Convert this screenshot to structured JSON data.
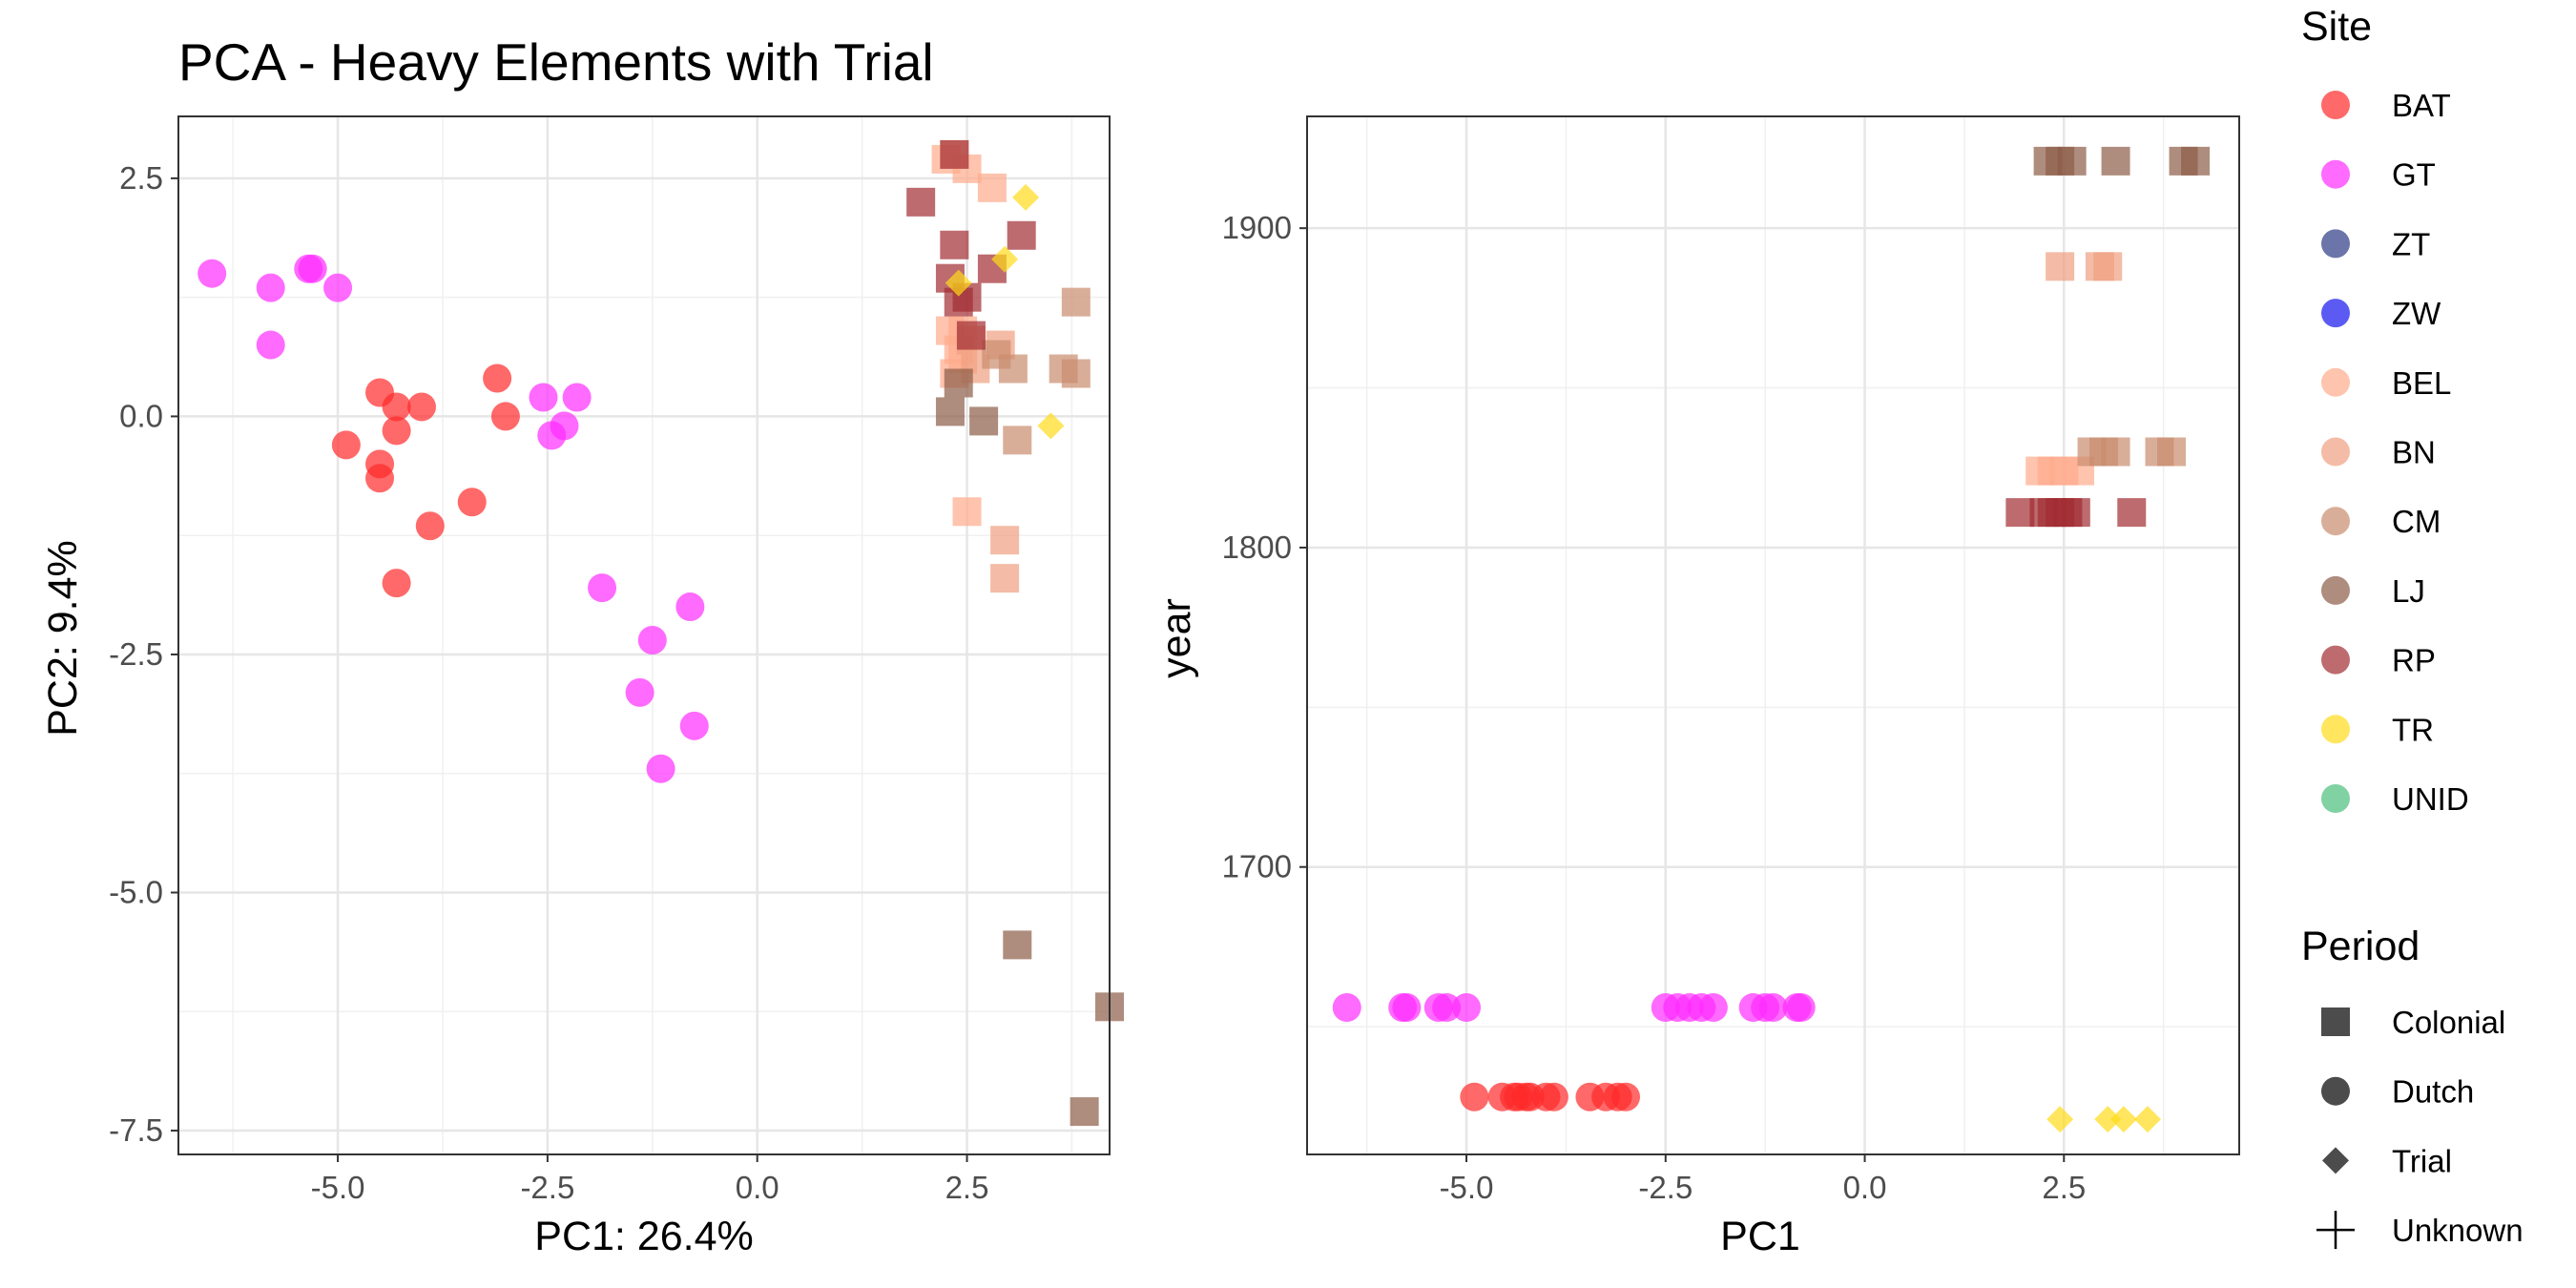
{
  "chart_data": [
    {
      "type": "scatter",
      "title": "PCA - Heavy Elements with Trial",
      "xlabel": "PC1: 26.4%",
      "ylabel": "PC2: 9.4%",
      "xlim": [
        -6.9,
        4.2
      ],
      "ylim": [
        -7.75,
        3.15
      ],
      "xticks": [
        "-5.0",
        "-2.5",
        "0.0",
        "2.5"
      ],
      "xtick_values": [
        -5.0,
        -2.5,
        0.0,
        2.5
      ],
      "yticks": [
        "2.5",
        "0.0",
        "-2.5",
        "-5.0",
        "-7.5"
      ],
      "ytick_values": [
        2.5,
        0.0,
        -2.5,
        -5.0,
        -7.5
      ],
      "grid": true,
      "series": [
        {
          "name": "BAT",
          "period": "Dutch",
          "x": [
            -4.5,
            -4.3,
            -4.0,
            -4.9,
            -4.5,
            -4.5,
            -4.3,
            -3.1,
            -3.0,
            -3.4,
            -3.9,
            -4.3
          ],
          "y": [
            0.25,
            0.1,
            0.1,
            -0.3,
            -0.5,
            -0.65,
            -0.15,
            0.4,
            0.0,
            -0.9,
            -1.15,
            -1.75
          ]
        },
        {
          "name": "GT",
          "period": "Dutch",
          "x": [
            -6.5,
            -5.8,
            -5.3,
            -5.35,
            -5.0,
            -5.8,
            -2.55,
            -2.15,
            -2.45,
            -2.3,
            -1.85,
            -0.8,
            -1.25,
            -1.4,
            -0.75,
            -1.15
          ],
          "y": [
            1.5,
            1.35,
            1.55,
            1.55,
            1.35,
            0.75,
            0.2,
            0.2,
            -0.2,
            -0.1,
            -1.8,
            -2.0,
            -2.35,
            -2.9,
            -3.25,
            -3.7
          ]
        },
        {
          "name": "BEL",
          "period": "Colonial",
          "x": [
            2.35,
            2.25,
            2.5,
            2.8,
            2.3,
            2.45,
            2.4,
            2.35,
            2.45,
            2.5
          ],
          "y": [
            2.75,
            2.7,
            2.6,
            2.4,
            0.9,
            0.9,
            0.7,
            0.45,
            0.6,
            -1.0
          ]
        },
        {
          "name": "BN",
          "period": "Colonial",
          "x": [
            2.95,
            2.95,
            2.55,
            2.6,
            2.9
          ],
          "y": [
            -1.3,
            -1.7,
            0.8,
            0.5,
            0.75
          ]
        },
        {
          "name": "CM",
          "period": "Colonial",
          "x": [
            3.8,
            3.65,
            3.8,
            3.05,
            3.1,
            2.85
          ],
          "y": [
            1.2,
            0.5,
            0.45,
            0.5,
            -0.25,
            0.65
          ]
        },
        {
          "name": "LJ",
          "period": "Colonial",
          "x": [
            2.4,
            2.3,
            2.7,
            3.1,
            4.2,
            3.9
          ],
          "y": [
            0.35,
            0.05,
            -0.05,
            -5.55,
            -6.2,
            -7.3
          ]
        },
        {
          "name": "RP",
          "period": "Colonial",
          "x": [
            2.35,
            1.95,
            3.15,
            2.35,
            2.8,
            2.3,
            2.5,
            2.55,
            2.4
          ],
          "y": [
            2.75,
            2.25,
            1.9,
            1.8,
            1.55,
            1.45,
            1.25,
            0.85,
            1.2
          ]
        },
        {
          "name": "TR",
          "period": "Trial",
          "x": [
            3.2,
            2.95,
            2.4,
            3.5
          ],
          "y": [
            2.3,
            1.65,
            1.4,
            -0.1
          ]
        }
      ]
    },
    {
      "type": "scatter",
      "title": "",
      "xlabel": "PC1",
      "ylabel": "year",
      "xlim": [
        -7.0,
        4.7
      ],
      "ylim": [
        1610,
        1935
      ],
      "xticks": [
        "-5.0",
        "-2.5",
        "0.0",
        "2.5"
      ],
      "xtick_values": [
        -5.0,
        -2.5,
        0.0,
        2.5
      ],
      "yticks": [
        "1900",
        "1800",
        "1700"
      ],
      "ytick_values": [
        1900,
        1800,
        1700
      ],
      "grid": true,
      "series": [
        {
          "name": "BAT",
          "period": "Dutch",
          "x": [
            -4.9,
            -4.55,
            -4.4,
            -4.35,
            -4.25,
            -4.2,
            -4.0,
            -3.9,
            -3.45,
            -3.25,
            -3.1,
            -3.0
          ],
          "y": [
            1628,
            1628,
            1628,
            1628,
            1628,
            1628,
            1628,
            1628,
            1628,
            1628,
            1628,
            1628
          ]
        },
        {
          "name": "GT",
          "period": "Dutch",
          "x": [
            -6.5,
            -5.8,
            -5.75,
            -5.35,
            -5.25,
            -5.0,
            -2.5,
            -2.35,
            -2.2,
            -2.05,
            -1.9,
            -1.4,
            -1.25,
            -1.15,
            -0.85,
            -0.8
          ],
          "y": [
            1656,
            1656,
            1656,
            1656,
            1656,
            1656,
            1656,
            1656,
            1656,
            1656,
            1656,
            1656,
            1656,
            1656,
            1656,
            1656
          ]
        },
        {
          "name": "BEL",
          "period": "Colonial",
          "x": [
            2.2,
            2.35,
            2.5,
            2.7
          ],
          "y": [
            1824,
            1824,
            1824,
            1824
          ]
        },
        {
          "name": "BN",
          "period": "Colonial",
          "x": [
            2.45,
            2.95,
            3.05
          ],
          "y": [
            1888,
            1888,
            1888
          ]
        },
        {
          "name": "CM",
          "period": "Colonial",
          "x": [
            2.85,
            3.0,
            3.15,
            3.7,
            3.85
          ],
          "y": [
            1830,
            1830,
            1830,
            1830,
            1830
          ]
        },
        {
          "name": "LJ",
          "period": "Colonial",
          "x": [
            2.3,
            2.45,
            2.6,
            3.15,
            4.0,
            4.15
          ],
          "y": [
            1921,
            1921,
            1921,
            1921,
            1921,
            1921
          ]
        },
        {
          "name": "RP",
          "period": "Colonial",
          "x": [
            1.95,
            2.25,
            2.35,
            2.45,
            2.55,
            2.65,
            3.35
          ],
          "y": [
            1811,
            1811,
            1811,
            1811,
            1811,
            1811,
            1811
          ]
        },
        {
          "name": "TR",
          "period": "Trial",
          "x": [
            2.45,
            3.05,
            3.25,
            3.55
          ],
          "y": [
            1621,
            1621,
            1621,
            1621
          ]
        }
      ]
    }
  ],
  "legend": {
    "site_title": "Site",
    "sites": [
      {
        "label": "BAT",
        "color": "#ff2a2a"
      },
      {
        "label": "GT",
        "color": "#ff2bff"
      },
      {
        "label": "ZT",
        "color": "#2e3a86"
      },
      {
        "label": "ZW",
        "color": "#1515f0"
      },
      {
        "label": "BEL",
        "color": "#ffab8c"
      },
      {
        "label": "BN",
        "color": "#f0a080"
      },
      {
        "label": "CM",
        "color": "#c98b6e"
      },
      {
        "label": "LJ",
        "color": "#8b5d47"
      },
      {
        "label": "RP",
        "color": "#a12c32"
      },
      {
        "label": "TR",
        "color": "#ffdc1a"
      },
      {
        "label": "UNID",
        "color": "#4cbf7c"
      }
    ],
    "period_title": "Period",
    "periods": [
      {
        "label": "Colonial",
        "shape": "square"
      },
      {
        "label": "Dutch",
        "shape": "circle"
      },
      {
        "label": "Trial",
        "shape": "diamond"
      },
      {
        "label": "Unknown",
        "shape": "cross"
      }
    ]
  }
}
